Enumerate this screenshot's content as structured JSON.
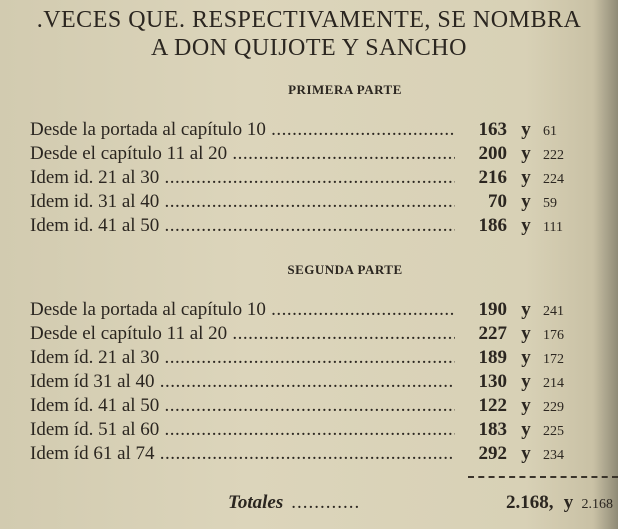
{
  "title": {
    "line1": ".VECES QUE. RESPECTIVAMENTE, SE NOMBRA",
    "line2": "A DON QUIJOTE Y SANCHO"
  },
  "primera": {
    "heading": "PRIMERA PARTE",
    "rows": [
      {
        "label": "Desde la portada al capítulo 10",
        "quijote": "163",
        "sep": "y",
        "sancho": "61"
      },
      {
        "label": "Desde el capítulo 11 al 20",
        "quijote": "200",
        "sep": "y",
        "sancho": "222"
      },
      {
        "label": "Idem id. 21 al 30",
        "quijote": "216",
        "sep": "y",
        "sancho": "224"
      },
      {
        "label": "Idem id. 31 al 40",
        "quijote": "70",
        "sep": "y",
        "sancho": "59"
      },
      {
        "label": "Idem id. 41 al 50",
        "quijote": "186",
        "sep": "y",
        "sancho": "111"
      }
    ]
  },
  "segunda": {
    "heading": "SEGUNDA PARTE",
    "rows": [
      {
        "label": "Desde la portada al capítulo 10",
        "quijote": "190",
        "sep": "y",
        "sancho": "241"
      },
      {
        "label": "Desde el capítulo 11 al 20",
        "quijote": "227",
        "sep": "y",
        "sancho": "176"
      },
      {
        "label": "Idem íd. 21 al 30",
        "quijote": "189",
        "sep": "y",
        "sancho": "172"
      },
      {
        "label": "Idem íd 31 al 40",
        "quijote": "130",
        "sep": "y",
        "sancho": "214"
      },
      {
        "label": "Idem íd. 41 al 50",
        "quijote": "122",
        "sep": "y",
        "sancho": "229"
      },
      {
        "label": "Idem íd. 51 al 60",
        "quijote": "183",
        "sep": "y",
        "sancho": "225"
      },
      {
        "label": "Idem íd 61 al 74",
        "quijote": "292",
        "sep": "y",
        "sancho": "234"
      }
    ]
  },
  "totales": {
    "label": "Totales",
    "quijote": "2.168,",
    "sep": "y",
    "sancho": "2.168"
  }
}
